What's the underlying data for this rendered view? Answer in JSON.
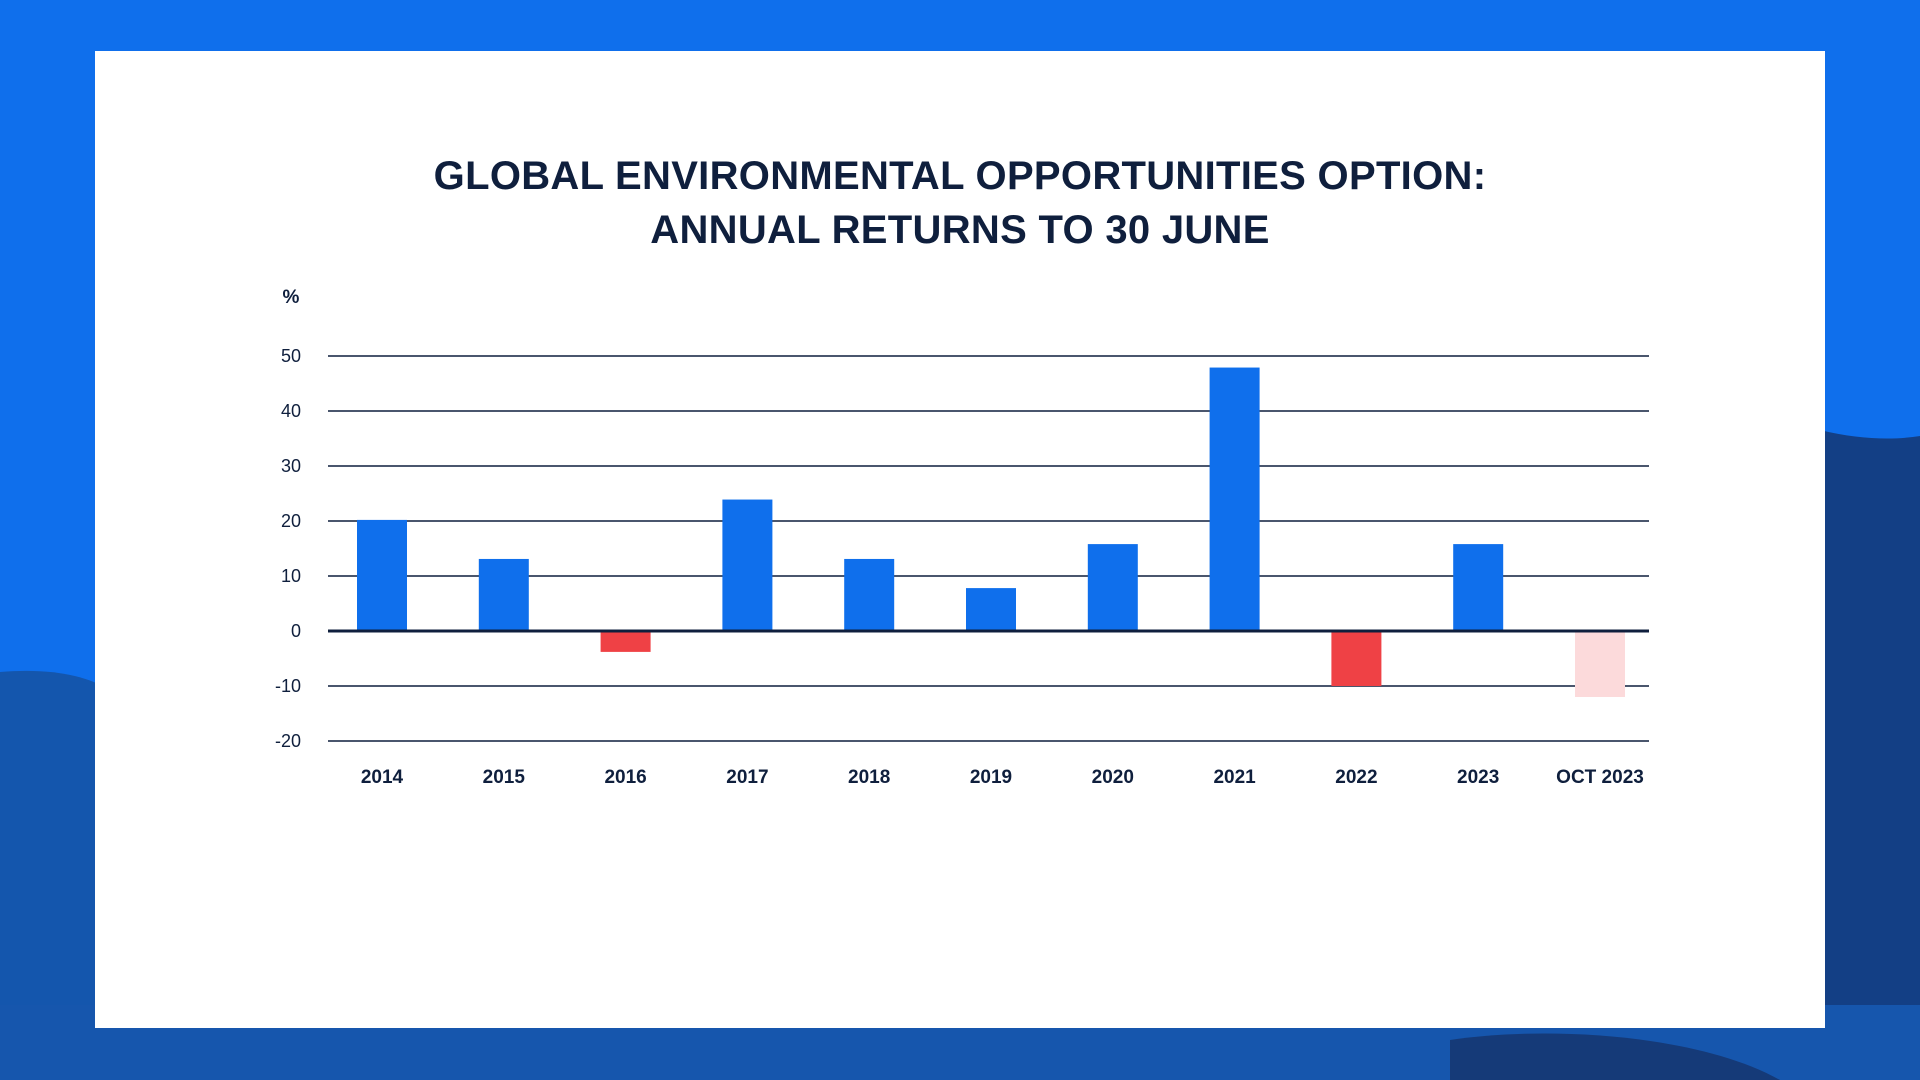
{
  "colors": {
    "positive": "#0f6fec",
    "negative": "#ef4145",
    "estimate": "#fcdadb",
    "grid": "#0f1f3d",
    "text": "#0f1f3d",
    "background_blue": "#0f6fec",
    "background_navy": "#123b7c"
  },
  "chart_data": {
    "type": "bar",
    "title_line1": "GLOBAL ENVIRONMENTAL OPPORTUNITIES OPTION:",
    "title_line2": "ANNUAL RETURNS TO 30 JUNE",
    "ylabel": "%",
    "xlabel": "",
    "ylim": [
      -20,
      50
    ],
    "yticks": [
      "50",
      "40",
      "30",
      "20",
      "10",
      "0",
      "-10",
      "-20"
    ],
    "ytick_values": [
      50,
      40,
      30,
      20,
      10,
      0,
      -10,
      -20
    ],
    "categories": [
      "2014",
      "2015",
      "2016",
      "2017",
      "2018",
      "2019",
      "2020",
      "2021",
      "2022",
      "2023",
      "OCT 2023"
    ],
    "values": [
      20.2,
      13.1,
      -3.8,
      23.9,
      13.1,
      7.8,
      15.8,
      47.9,
      -10.0,
      15.8,
      -12.0
    ],
    "bar_colors": [
      "positive",
      "positive",
      "negative",
      "positive",
      "positive",
      "positive",
      "positive",
      "positive",
      "negative",
      "positive",
      "estimate"
    ],
    "grid": true,
    "legend": "none"
  }
}
